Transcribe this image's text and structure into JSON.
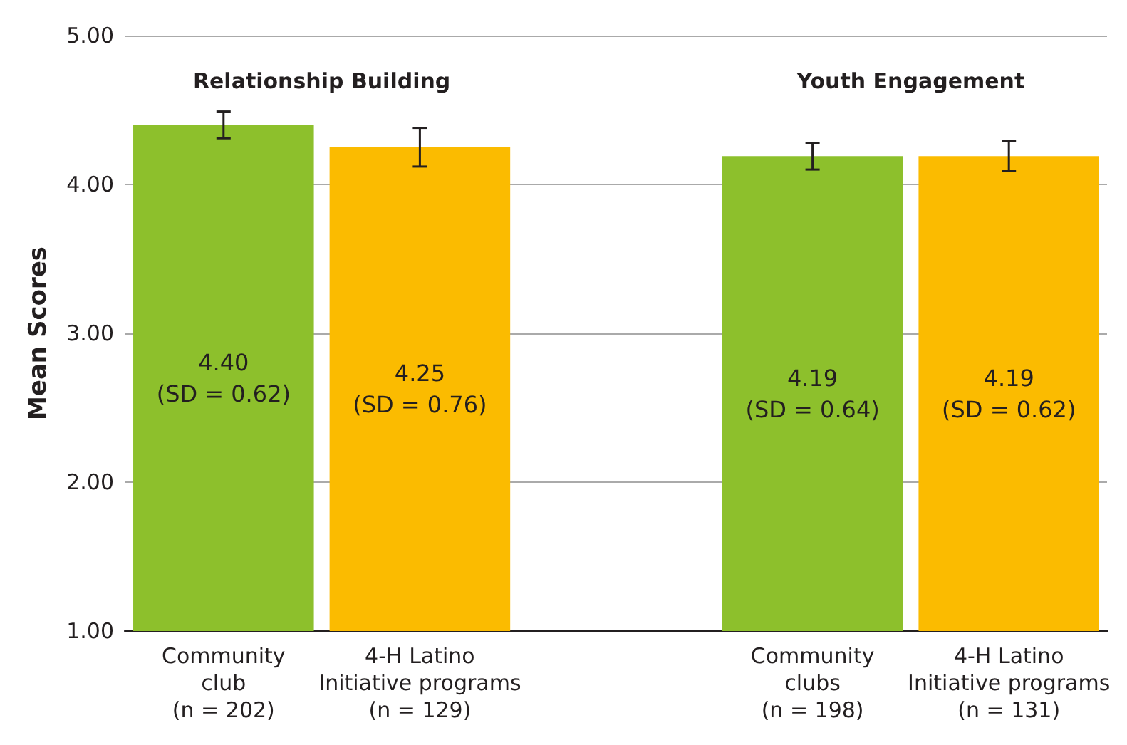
{
  "chart_data": {
    "type": "bar",
    "ylabel": "Mean Scores",
    "categories": [
      "Community\nclub\n(n = 202)",
      "4-H Latino\nInitiative programs\n(n = 129)",
      null,
      "Community\nclubs\n(n = 198)",
      "4-H Latino\nInitiative programs\n(n = 131)"
    ],
    "values": [
      4.4,
      4.25,
      null,
      4.19,
      4.19
    ],
    "colors": [
      "#8dc02c",
      "#fbbb00",
      null,
      "#8dc02c",
      "#fbbb00"
    ],
    "errors": [
      0.09,
      0.13,
      null,
      0.09,
      0.1
    ],
    "value_labels": [
      "4.40\n(SD = 0.62)",
      "4.25\n(SD = 0.76)",
      null,
      "4.19\n(SD = 0.64)",
      "4.19\n(SD = 0.62)"
    ],
    "annotations": [
      "Relationship Building",
      "Youth Engagement"
    ],
    "ylim": [
      1,
      5
    ],
    "yticks": [
      {
        "value": 1,
        "label": "1.00"
      },
      {
        "value": 2,
        "label": "2.00"
      },
      {
        "value": 3,
        "label": "3.00"
      },
      {
        "value": 4,
        "label": "4.00"
      },
      {
        "value": 5,
        "label": "5.00"
      }
    ],
    "grid": "y"
  }
}
